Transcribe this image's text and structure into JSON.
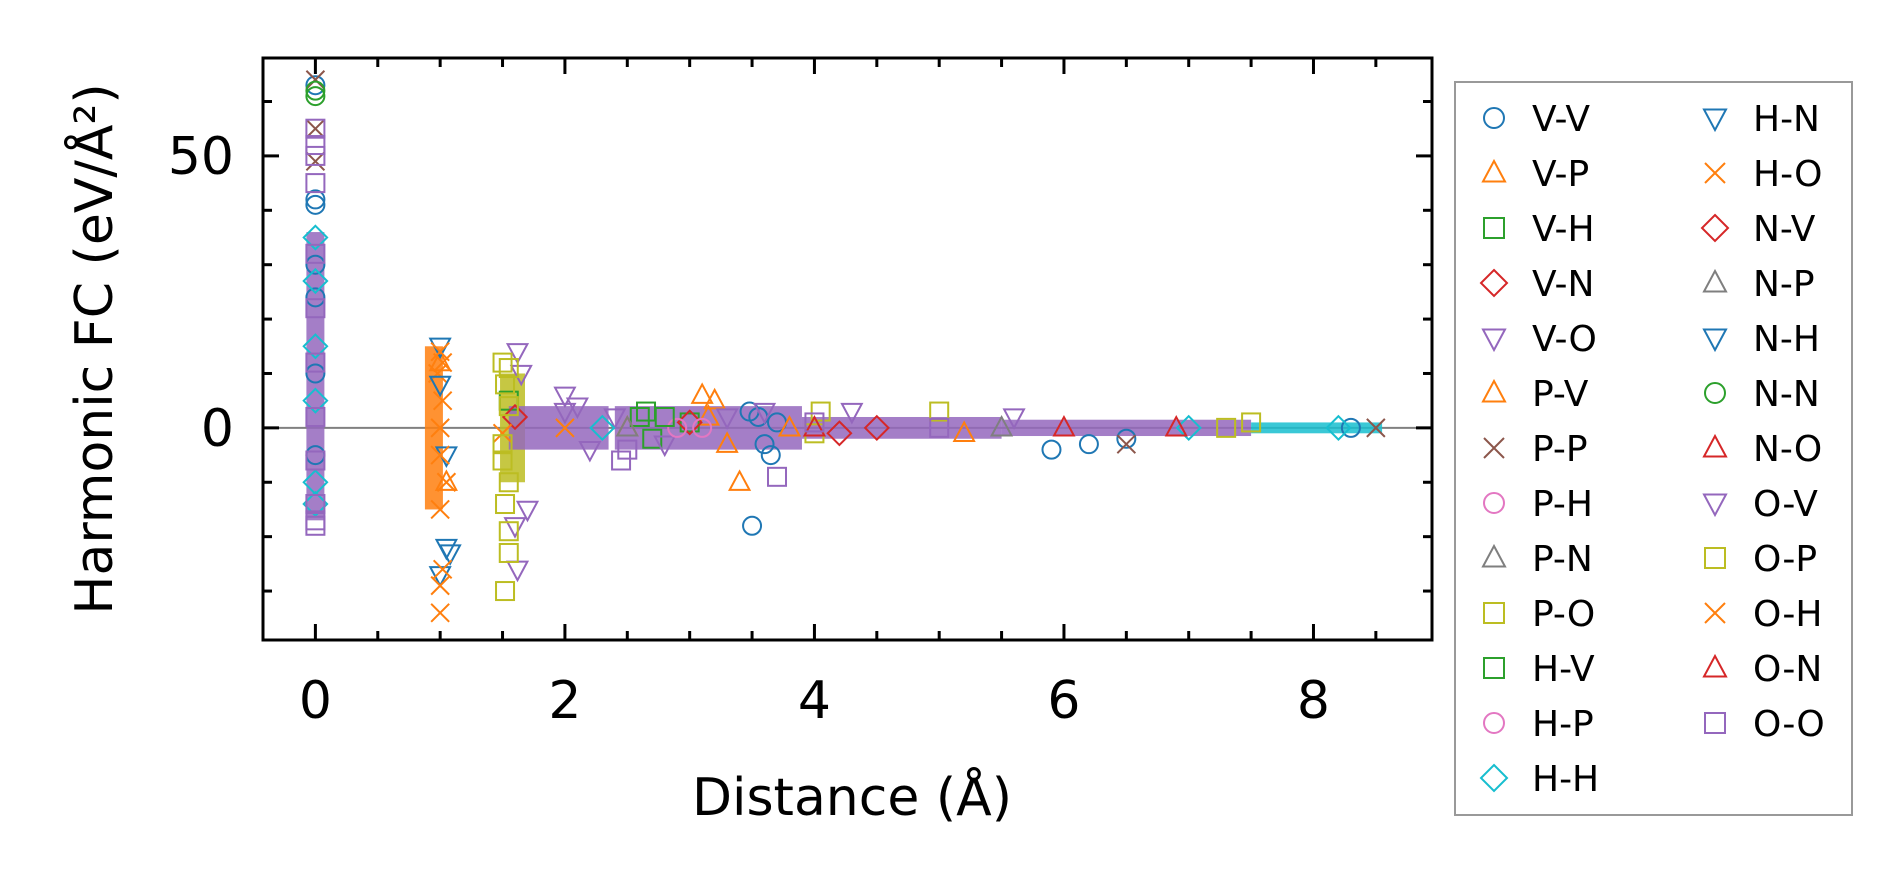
{
  "chart_data": {
    "type": "scatter",
    "xlabel": "Distance (Å)",
    "ylabel": "Harmonic FC (eV/Å²)",
    "xlim": [
      -0.42,
      8.95
    ],
    "ylim": [
      -39,
      68
    ],
    "x_ticks": [
      0,
      2,
      4,
      6,
      8
    ],
    "y_ticks": [
      0,
      50
    ],
    "x_tick_labels": [
      "0",
      "2",
      "4",
      "6",
      "8"
    ],
    "y_tick_labels": [
      "0",
      "50"
    ],
    "x_minor_step": 0.5,
    "y_minor_step": 10,
    "reference_line": {
      "y": 0,
      "color": "#808080"
    },
    "grid": false,
    "legend_position": "right, outside plot",
    "legend_columns": 2,
    "series": [
      {
        "name": "V-V",
        "marker": "circle",
        "color": "#1f77b4",
        "points": [
          [
            0,
            63
          ],
          [
            0,
            42
          ],
          [
            0,
            41
          ],
          [
            0,
            30
          ],
          [
            0,
            24
          ],
          [
            0,
            10
          ],
          [
            0,
            -5
          ],
          [
            3.48,
            3
          ],
          [
            3.5,
            -18
          ],
          [
            3.55,
            2
          ],
          [
            3.6,
            -3
          ],
          [
            3.65,
            -5
          ],
          [
            3.7,
            1
          ],
          [
            5.9,
            -4
          ],
          [
            6.2,
            -3
          ],
          [
            6.5,
            -2
          ],
          [
            8.3,
            0
          ]
        ]
      },
      {
        "name": "V-P",
        "marker": "triangle-up",
        "color": "#ff7f0e",
        "points": [
          [
            1.0,
            12
          ],
          [
            1.05,
            -10
          ],
          [
            3.1,
            6
          ],
          [
            3.2,
            5
          ],
          [
            3.3,
            -3
          ],
          [
            3.4,
            -10
          ],
          [
            3.15,
            2
          ],
          [
            5.2,
            -1
          ]
        ]
      },
      {
        "name": "V-H",
        "marker": "square",
        "color": "#2ca02c",
        "points": [
          [
            1.55,
            5
          ],
          [
            2.6,
            2
          ],
          [
            2.65,
            3
          ],
          [
            2.7,
            -2
          ],
          [
            3.0,
            1
          ]
        ]
      },
      {
        "name": "V-N",
        "marker": "diamond",
        "color": "#d62728",
        "points": [
          [
            1.6,
            2
          ],
          [
            3.0,
            1
          ],
          [
            4.2,
            -1
          ]
        ]
      },
      {
        "name": "V-O",
        "marker": "triangle-down",
        "color": "#9467bd",
        "points": [
          [
            1.62,
            14
          ],
          [
            1.65,
            10
          ],
          [
            1.6,
            -18
          ],
          [
            1.62,
            -26
          ],
          [
            1.7,
            -15
          ],
          [
            2.0,
            6
          ],
          [
            2.1,
            4
          ],
          [
            2.2,
            -4
          ],
          [
            2.4,
            2
          ],
          [
            2.8,
            -3
          ],
          [
            3.3,
            2
          ],
          [
            4.3,
            3
          ],
          [
            5.6,
            2
          ]
        ]
      },
      {
        "name": "P-V",
        "marker": "triangle-up",
        "color": "#ff7f0e",
        "points": [
          [
            2.5,
            0
          ],
          [
            3.8,
            0
          ]
        ]
      },
      {
        "name": "P-P",
        "marker": "x",
        "color": "#8c564b",
        "points": [
          [
            0,
            64
          ],
          [
            0,
            55
          ],
          [
            0,
            49
          ],
          [
            6.5,
            -3
          ],
          [
            8.5,
            0
          ]
        ]
      },
      {
        "name": "P-H",
        "marker": "circle",
        "color": "#e377c2",
        "points": [
          [
            2.9,
            0
          ]
        ]
      },
      {
        "name": "P-N",
        "marker": "triangle-up",
        "color": "#7f7f7f",
        "points": [
          [
            2.5,
            0
          ]
        ]
      },
      {
        "name": "P-O",
        "marker": "square",
        "color": "#bcbd22",
        "points": [
          [
            1.5,
            12
          ],
          [
            1.52,
            8
          ],
          [
            1.55,
            4
          ],
          [
            1.5,
            -6
          ],
          [
            1.55,
            -10
          ],
          [
            1.52,
            -14
          ],
          [
            1.55,
            -19
          ],
          [
            1.55,
            -23
          ],
          [
            1.52,
            -30
          ],
          [
            4.0,
            -1
          ],
          [
            4.05,
            3
          ],
          [
            5.0,
            3
          ],
          [
            7.3,
            0
          ],
          [
            7.5,
            1
          ]
        ]
      },
      {
        "name": "H-V",
        "marker": "square",
        "color": "#2ca02c",
        "points": [
          [
            2.8,
            2
          ]
        ]
      },
      {
        "name": "H-P",
        "marker": "circle",
        "color": "#e377c2",
        "points": [
          [
            3.1,
            0
          ]
        ]
      },
      {
        "name": "H-H",
        "marker": "diamond",
        "color": "#17becf",
        "points": [
          [
            0,
            35
          ],
          [
            0,
            27
          ],
          [
            0,
            15
          ],
          [
            0,
            5
          ],
          [
            0,
            -10
          ],
          [
            0,
            -14
          ],
          [
            2.3,
            0
          ],
          [
            7.0,
            0
          ],
          [
            8.2,
            0
          ]
        ]
      },
      {
        "name": "H-N",
        "marker": "triangle-down",
        "color": "#1f77b4",
        "points": [
          [
            1.0,
            15
          ],
          [
            1.05,
            -5
          ],
          [
            1.05,
            -22
          ],
          [
            1.08,
            -23
          ],
          [
            1.0,
            -27
          ]
        ]
      },
      {
        "name": "H-O",
        "marker": "x",
        "color": "#ff7f0e",
        "points": [
          [
            1.0,
            14
          ],
          [
            0.98,
            10
          ],
          [
            1.02,
            5
          ],
          [
            1.0,
            -5
          ],
          [
            1.05,
            -10
          ],
          [
            1.0,
            -15
          ],
          [
            1.02,
            -26
          ],
          [
            1.0,
            -29
          ],
          [
            1.0,
            -34
          ],
          [
            1.5,
            -1
          ],
          [
            2.0,
            0
          ]
        ]
      },
      {
        "name": "N-V",
        "marker": "diamond",
        "color": "#d62728",
        "points": [
          [
            4.5,
            0
          ]
        ]
      },
      {
        "name": "N-P",
        "marker": "triangle-up",
        "color": "#7f7f7f",
        "points": [
          [
            5.5,
            0
          ]
        ]
      },
      {
        "name": "N-H",
        "marker": "triangle-down",
        "color": "#1f77b4",
        "points": [
          [
            1.0,
            8
          ]
        ]
      },
      {
        "name": "N-N",
        "marker": "circle",
        "color": "#2ca02c",
        "points": [
          [
            0,
            62
          ],
          [
            0,
            61
          ]
        ]
      },
      {
        "name": "N-O",
        "marker": "triangle-up",
        "color": "#d62728",
        "points": [
          [
            4.0,
            0
          ],
          [
            6.0,
            0
          ]
        ]
      },
      {
        "name": "O-V",
        "marker": "triangle-down",
        "color": "#9467bd",
        "points": [
          [
            2.0,
            3
          ],
          [
            3.6,
            3
          ]
        ]
      },
      {
        "name": "O-P",
        "marker": "square",
        "color": "#bcbd22",
        "points": [
          [
            1.55,
            11
          ],
          [
            1.5,
            -3
          ]
        ]
      },
      {
        "name": "O-H",
        "marker": "x",
        "color": "#ff7f0e",
        "points": [
          [
            1.02,
            12
          ],
          [
            1.0,
            0
          ]
        ]
      },
      {
        "name": "O-N",
        "marker": "triangle-up",
        "color": "#d62728",
        "points": [
          [
            6.9,
            0
          ]
        ]
      },
      {
        "name": "O-O",
        "marker": "square",
        "color": "#9467bd",
        "points": [
          [
            0,
            55
          ],
          [
            0,
            52
          ],
          [
            0,
            50
          ],
          [
            0,
            45
          ],
          [
            0,
            32
          ],
          [
            0,
            22
          ],
          [
            0,
            12
          ],
          [
            0,
            2
          ],
          [
            0,
            -6
          ],
          [
            0,
            -14
          ],
          [
            0,
            -17
          ],
          [
            0,
            -18
          ],
          [
            2.45,
            -6
          ],
          [
            2.5,
            -4
          ],
          [
            3.7,
            -9
          ],
          [
            4.0,
            1
          ],
          [
            5.0,
            0
          ]
        ]
      }
    ],
    "bands": [
      {
        "series": "O-O",
        "x": [
          0,
          0
        ],
        "y": [
          -17,
          36
        ]
      },
      {
        "series": "H-O",
        "x": [
          0.95,
          1.08
        ],
        "y": [
          -15,
          15
        ]
      },
      {
        "series": "P-O",
        "x": [
          1.48,
          1.68
        ],
        "y": [
          -10,
          10
        ]
      },
      {
        "series": "V-O",
        "x": [
          1.55,
          2.35
        ],
        "y": [
          -4,
          4
        ]
      },
      {
        "series": "O-O",
        "x": [
          2.4,
          3.9
        ],
        "y": [
          -4,
          4
        ]
      },
      {
        "series": "O-O",
        "x": [
          3.9,
          5.5
        ],
        "y": [
          -2,
          2
        ]
      },
      {
        "series": "O-O",
        "x": [
          5.5,
          7.5
        ],
        "y": [
          -1.5,
          1.5
        ]
      },
      {
        "series": "H-H",
        "x": [
          7.5,
          8.55
        ],
        "y": [
          -1,
          1
        ]
      }
    ]
  }
}
